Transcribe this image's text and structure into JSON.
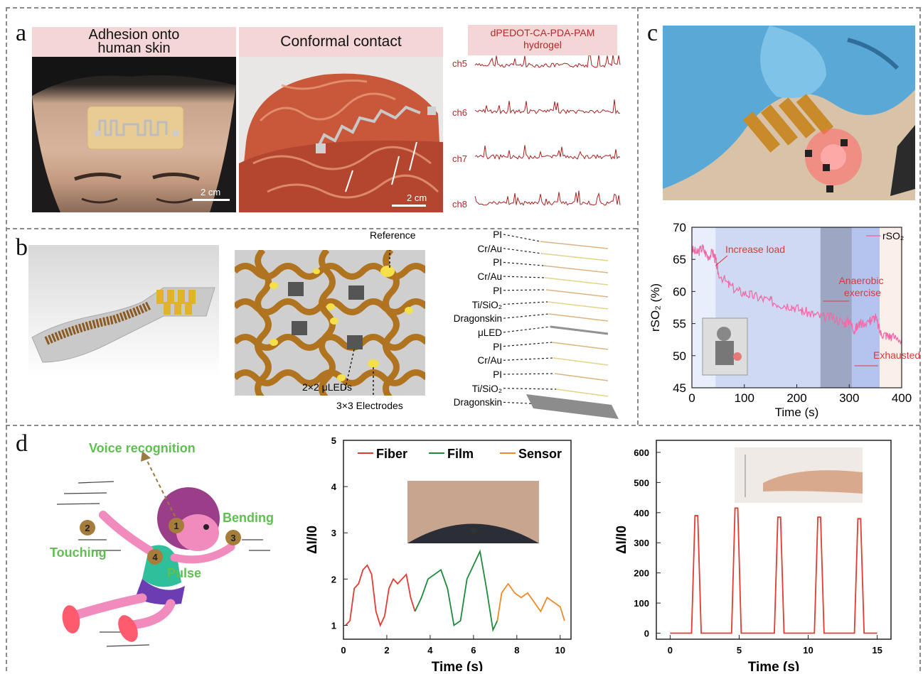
{
  "panel_labels": [
    "a",
    "b",
    "c",
    "d"
  ],
  "panel_a": {
    "header1": [
      "Adhesion onto",
      "human skin"
    ],
    "header2": "Conformal contact",
    "header3": [
      "dPEDOT-CA-PDA-PAM",
      "hydrogel"
    ],
    "scalebar1": "2 cm",
    "scalebar2": "2 cm",
    "channels": [
      "ch5",
      "ch6",
      "ch7",
      "ch8"
    ]
  },
  "panel_b": {
    "reference": "Reference",
    "leds": "2×2 μLEDs",
    "electrodes": "3×3 Electrodes",
    "layers": [
      "PI",
      "Cr/Au",
      "PI",
      "Cr/Au",
      "PI",
      "Ti/SiO₂",
      "Dragonskin",
      "μLED",
      "PI",
      "Cr/Au",
      "PI",
      "Ti/SiO₂",
      "Dragonskin"
    ]
  },
  "panel_c": {
    "legend": "rSO₂",
    "ylabel": "rSO₂ (%)",
    "xlabel": "Time (s)",
    "annotations": [
      "Increase load",
      "Anaerobic",
      "exercise",
      "Exhausted"
    ],
    "xticks": [
      "0",
      "100",
      "200",
      "300",
      "400"
    ],
    "yticks": [
      "45",
      "50",
      "55",
      "60",
      "65",
      "70"
    ]
  },
  "panel_d": {
    "labels": [
      "Voice recognition",
      "Bending",
      "Touching",
      "Pulse"
    ],
    "markers": [
      "1",
      "2",
      "3",
      "4"
    ]
  },
  "chart_data": [
    {
      "type": "line",
      "xlabel": "Time (s)",
      "ylabel": "rSO₂ (%)",
      "xlim": [
        0,
        400
      ],
      "ylim": [
        45,
        70
      ],
      "series": [
        {
          "name": "rSO₂",
          "x": [
            0,
            10,
            20,
            30,
            40,
            45,
            50,
            70,
            90,
            110,
            130,
            150,
            170,
            190,
            210,
            230,
            250,
            270,
            290,
            300,
            310,
            320,
            340,
            350,
            360,
            370,
            380,
            400
          ],
          "y": [
            66.5,
            66,
            66.8,
            65.5,
            66,
            65,
            63,
            61,
            60,
            59.5,
            59,
            58.5,
            58,
            57.8,
            57,
            56.5,
            56,
            56,
            55,
            55.5,
            54,
            55,
            55.5,
            56,
            53.5,
            53.2,
            53,
            52.5
          ]
        }
      ]
    },
    {
      "type": "line",
      "xlabel": "Time (s)",
      "ylabel": "ΔI/I0",
      "xlim": [
        0,
        10.5
      ],
      "ylim": [
        0.7,
        5
      ],
      "xticks": [
        "0",
        "2",
        "4",
        "6",
        "8",
        "10"
      ],
      "yticks": [
        "1",
        "2",
        "3",
        "4",
        "5"
      ],
      "series": [
        {
          "name": "Fiber",
          "color": "#e33a32",
          "x": [
            0.1,
            0.3,
            0.5,
            0.7,
            0.9,
            1.1,
            1.3,
            1.5,
            1.7,
            1.9,
            2.1,
            2.3,
            2.5,
            2.7,
            2.9,
            3.1,
            3.3
          ],
          "y": [
            1.0,
            1.1,
            1.8,
            1.9,
            2.2,
            2.3,
            2.1,
            1.3,
            1.0,
            1.2,
            1.8,
            2.0,
            1.9,
            2.0,
            2.1,
            1.6,
            1.3
          ]
        },
        {
          "name": "Film",
          "color": "#1f8a3b",
          "x": [
            3.3,
            3.6,
            3.9,
            4.2,
            4.5,
            4.8,
            5.1,
            5.4,
            5.7,
            6.0,
            6.3,
            6.6,
            6.9,
            7.1
          ],
          "y": [
            1.3,
            1.6,
            2.0,
            2.1,
            2.2,
            1.8,
            1.0,
            1.1,
            2.0,
            2.3,
            2.6,
            1.8,
            0.9,
            1.1
          ]
        },
        {
          "name": "Sensor",
          "color": "#f08a28",
          "x": [
            7.1,
            7.3,
            7.6,
            7.9,
            8.2,
            8.5,
            8.8,
            9.1,
            9.4,
            9.7,
            10.0,
            10.2
          ],
          "y": [
            1.1,
            1.7,
            1.9,
            1.7,
            1.6,
            1.7,
            1.5,
            1.3,
            1.6,
            1.5,
            1.4,
            1.1
          ]
        }
      ]
    },
    {
      "type": "line",
      "xlabel": "Time (s)",
      "ylabel": "ΔI/I0",
      "xlim": [
        -1,
        16
      ],
      "ylim": [
        -20,
        640
      ],
      "xticks": [
        "0",
        "5",
        "10",
        "15"
      ],
      "yticks": [
        "0",
        "100",
        "200",
        "300",
        "400",
        "500",
        "600"
      ],
      "series": [
        {
          "name": "",
          "color": "#e33a32",
          "peaks_t": [
            1.9,
            4.8,
            7.9,
            10.8,
            13.7
          ],
          "peaks_v": [
            390,
            415,
            385,
            385,
            380
          ]
        }
      ]
    }
  ]
}
